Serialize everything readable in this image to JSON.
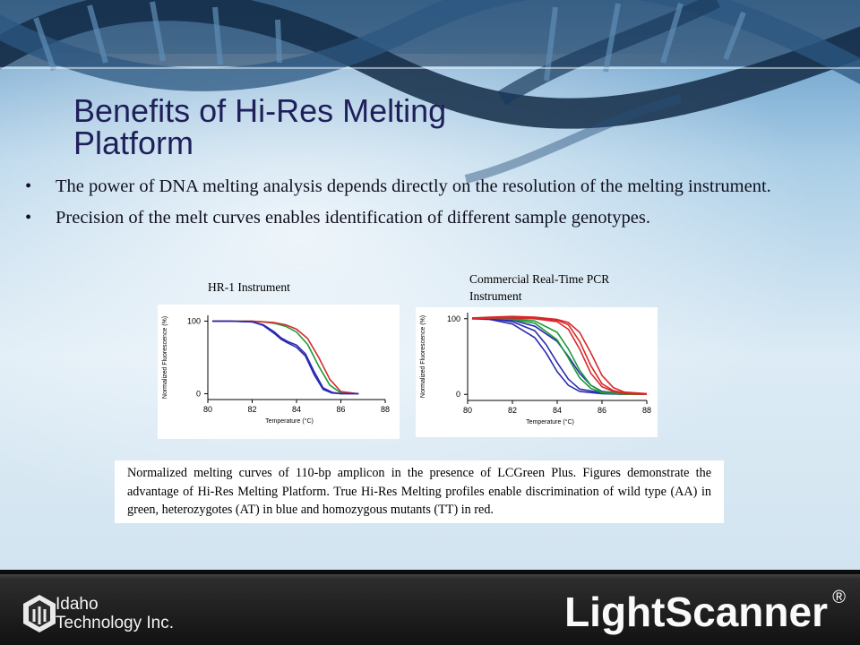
{
  "slide": {
    "title": "Benefits of Hi-Res Melting Platform",
    "bullets": [
      "The power of DNA melting analysis depends directly on the resolution of the melting instrument.",
      "Precision of the melt curves enables identification of different sample genotypes."
    ],
    "bullet_glyph": "•",
    "caption": "Normalized melting curves of 110-bp amplicon in the presence of LCGreen Plus. Figures demonstrate the advantage of Hi-Res Melting Platform. True Hi-Res Melting profiles enable discrimination of wild type (AA) in green, heterozygotes (AT) in blue and homozygous mutants (TT) in red.",
    "footer": {
      "company_line1": "Idaho",
      "company_line2": "Technology Inc.",
      "brand": "LightScanner",
      "brand_mark": "®"
    },
    "colors": {
      "title": "#1f1f5a",
      "wild_type": "#1e9b3a",
      "heterozygote": "#2a2ab0",
      "homozygous_mutant": "#d8282a"
    }
  },
  "chart_data": [
    {
      "type": "line",
      "title": "HR-1 Instrument",
      "ylabel": "Normalized Fluorescence (%)",
      "xlabel": "Temperature (°C)",
      "xticks": [
        80,
        82,
        84,
        86,
        88
      ],
      "yticks": [
        0,
        100
      ],
      "xlim": [
        80,
        88
      ],
      "ylim": [
        -8,
        108
      ],
      "series": [
        {
          "genotype": "AA",
          "color": "#1e9b3a",
          "x": [
            80.2,
            81,
            82,
            82.5,
            83,
            83.5,
            84,
            84.5,
            85,
            85.5,
            86,
            86.8
          ],
          "y": [
            100,
            100,
            100,
            99,
            97,
            93,
            85,
            68,
            38,
            12,
            1,
            0
          ]
        },
        {
          "genotype": "TT",
          "color": "#d8282a",
          "x": [
            80.2,
            81,
            82,
            82.5,
            83,
            83.5,
            84,
            84.5,
            85,
            85.5,
            86,
            86.8
          ],
          "y": [
            100,
            100,
            100,
            99,
            98,
            95,
            89,
            76,
            50,
            20,
            3,
            0
          ]
        },
        {
          "genotype": "AT",
          "color": "#2a2ab0",
          "x": [
            80.2,
            81,
            82,
            82.5,
            83,
            83.3,
            83.6,
            84,
            84.4,
            84.8,
            85.2,
            85.6,
            86,
            86.8
          ],
          "y": [
            100,
            100,
            99,
            95,
            85,
            77,
            72,
            67,
            55,
            30,
            8,
            2,
            0,
            0
          ]
        },
        {
          "genotype": "AT",
          "color": "#2a2ab0",
          "x": [
            80.2,
            81,
            82,
            82.5,
            83,
            83.3,
            83.6,
            84,
            84.4,
            84.8,
            85.2,
            85.6,
            86,
            86.8
          ],
          "y": [
            100,
            100,
            99,
            94,
            83,
            75,
            70,
            64,
            52,
            26,
            6,
            1,
            0,
            0
          ]
        }
      ]
    },
    {
      "type": "line",
      "title": "Commercial Real-Time PCR Instrument",
      "ylabel": "Normalized Fluorescence (%)",
      "xlabel": "Temperature (°C)",
      "xticks": [
        80,
        82,
        84,
        86,
        88
      ],
      "yticks": [
        0,
        100
      ],
      "xlim": [
        80,
        88
      ],
      "ylim": [
        -8,
        108
      ],
      "series": [
        {
          "genotype": "AT",
          "color": "#2a2ab0",
          "x": [
            80.2,
            81,
            82,
            83,
            83.5,
            84,
            84.5,
            85,
            86,
            87,
            88
          ],
          "y": [
            100,
            99,
            93,
            75,
            55,
            30,
            12,
            4,
            1,
            0,
            0
          ]
        },
        {
          "genotype": "AT",
          "color": "#2a2ab0",
          "x": [
            80.2,
            81,
            82,
            83,
            83.5,
            84,
            84.5,
            85,
            86,
            87,
            88
          ],
          "y": [
            101,
            100,
            96,
            84,
            66,
            42,
            20,
            7,
            2,
            0,
            0
          ]
        },
        {
          "genotype": "AT",
          "color": "#2a2ab0",
          "x": [
            80.2,
            81,
            82,
            83,
            84,
            84.5,
            85,
            85.5,
            86,
            87,
            88
          ],
          "y": [
            100,
            100,
            98,
            90,
            70,
            50,
            28,
            12,
            4,
            1,
            0
          ]
        },
        {
          "genotype": "AA",
          "color": "#1e9b3a",
          "x": [
            80.2,
            81,
            82,
            83,
            84,
            84.5,
            85,
            85.5,
            86,
            87,
            88
          ],
          "y": [
            101,
            101,
            99,
            94,
            72,
            48,
            22,
            8,
            2,
            0,
            0
          ]
        },
        {
          "genotype": "AA",
          "color": "#1e9b3a",
          "x": [
            80.2,
            81,
            82,
            83,
            84,
            84.5,
            85,
            85.5,
            86,
            87,
            88
          ],
          "y": [
            100,
            101,
            100,
            97,
            82,
            60,
            32,
            12,
            3,
            1,
            0
          ]
        },
        {
          "genotype": "TT",
          "color": "#d8282a",
          "x": [
            80.2,
            81,
            82,
            83,
            84,
            84.5,
            85,
            85.5,
            86,
            86.5,
            87,
            88
          ],
          "y": [
            100,
            101,
            102,
            101,
            98,
            92,
            70,
            38,
            14,
            5,
            2,
            0
          ]
        },
        {
          "genotype": "TT",
          "color": "#d8282a",
          "x": [
            80.2,
            81,
            82,
            83,
            84,
            84.5,
            85,
            85.5,
            86,
            86.5,
            87,
            88
          ],
          "y": [
            101,
            102,
            103,
            102,
            99,
            95,
            82,
            55,
            25,
            9,
            3,
            1
          ]
        },
        {
          "genotype": "TT",
          "color": "#d8282a",
          "x": [
            80.2,
            81,
            82,
            83,
            84,
            84.5,
            85,
            85.5,
            86,
            86.5,
            87,
            88
          ],
          "y": [
            100,
            101,
            101,
            100,
            96,
            86,
            60,
            28,
            10,
            4,
            1,
            0
          ]
        }
      ]
    }
  ]
}
